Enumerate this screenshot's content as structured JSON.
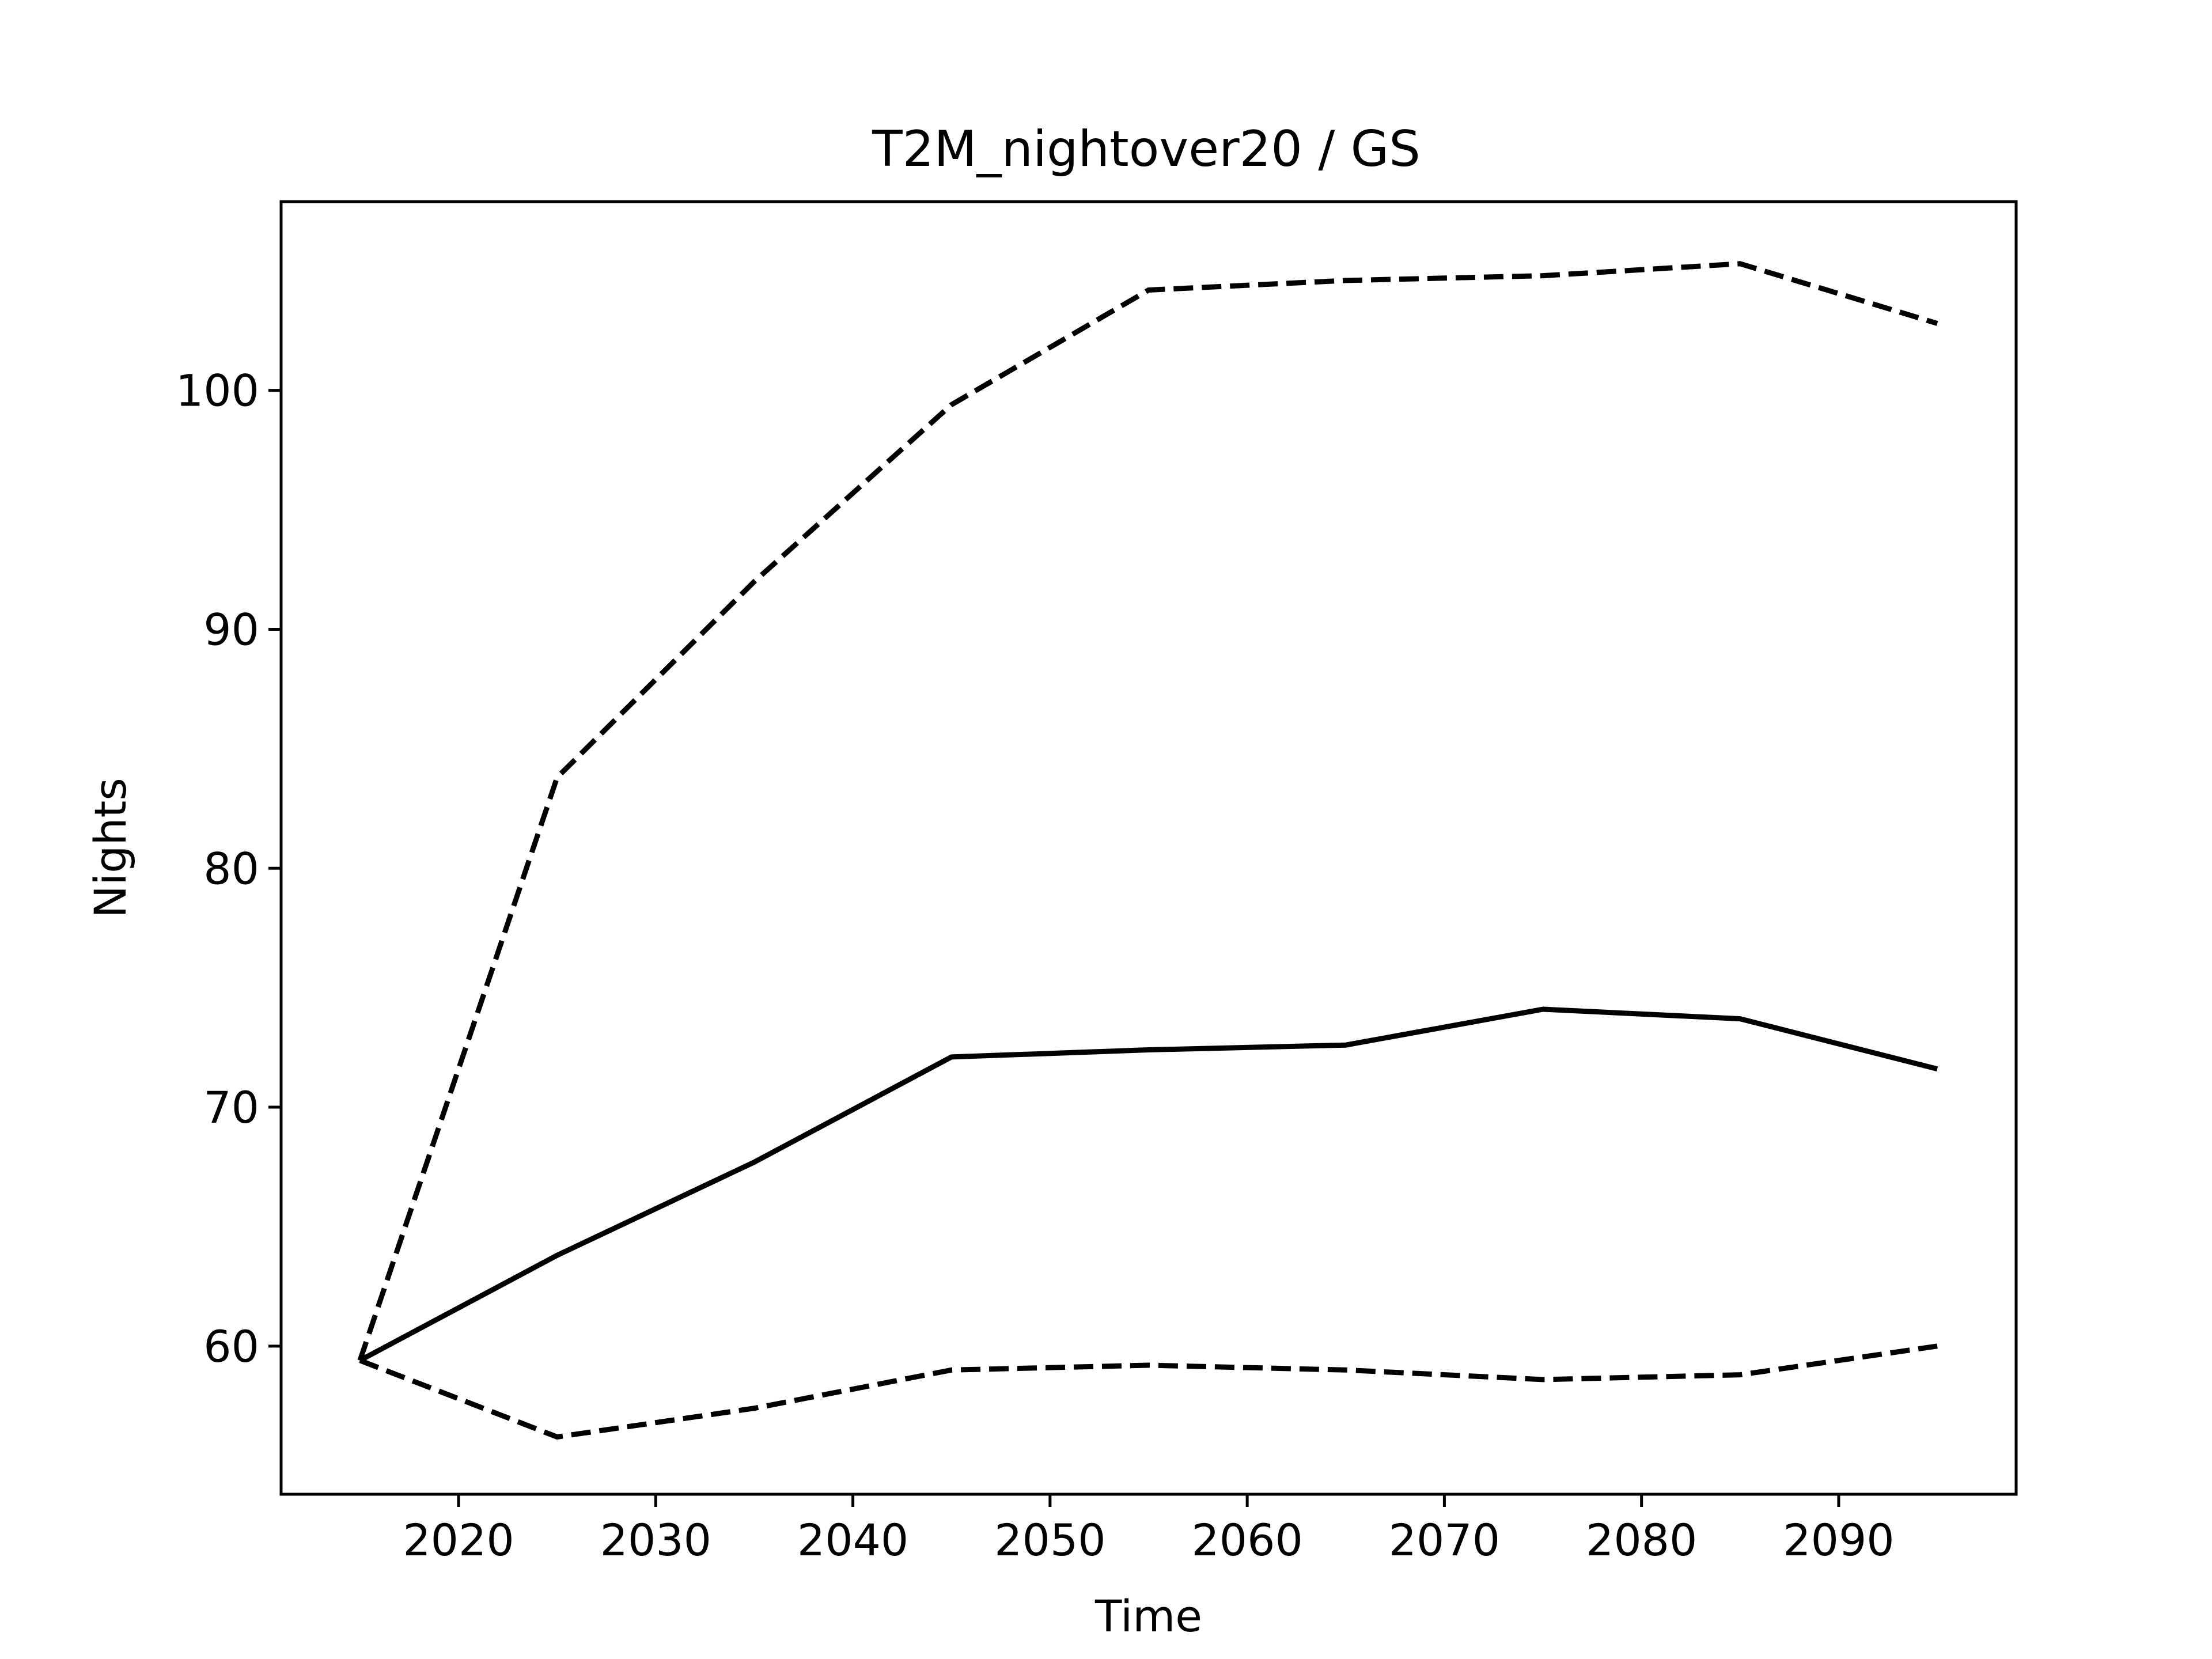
{
  "chart_data": {
    "type": "line",
    "title": "T2M_nightover20 / GS",
    "xlabel": "Time",
    "ylabel": "Nights",
    "xlim": [
      2011,
      2099
    ],
    "ylim": [
      53.8,
      107.9
    ],
    "xticks": [
      2020,
      2030,
      2040,
      2050,
      2060,
      2070,
      2080,
      2090
    ],
    "yticks": [
      60,
      70,
      80,
      90,
      100
    ],
    "grid": false,
    "legend": "none",
    "x": [
      2015,
      2025,
      2035,
      2045,
      2055,
      2065,
      2075,
      2085,
      2095
    ],
    "series": [
      {
        "style": "dashed",
        "color": "#000000",
        "values": [
          59.4,
          83.8,
          92.0,
          99.4,
          104.2,
          104.6,
          104.8,
          105.3,
          102.8
        ]
      },
      {
        "style": "solid",
        "color": "#000000",
        "values": [
          59.4,
          63.8,
          67.7,
          72.1,
          72.4,
          72.6,
          74.1,
          73.7,
          71.6
        ]
      },
      {
        "style": "dashed",
        "color": "#000000",
        "values": [
          59.4,
          56.2,
          57.4,
          59.0,
          59.2,
          59.0,
          58.6,
          58.8,
          60.0
        ]
      }
    ]
  }
}
